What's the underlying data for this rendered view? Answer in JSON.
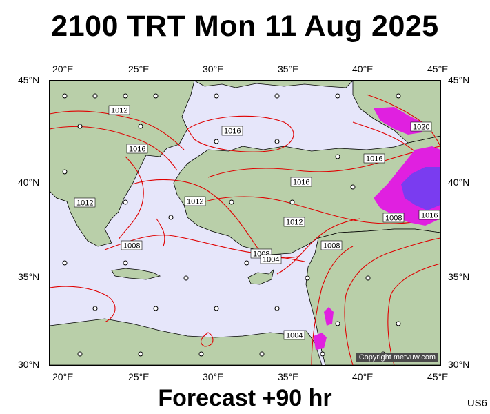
{
  "title": "2100 TRT Mon 11 Aug 2025",
  "footer": "Forecast +90 hr",
  "model_code": "US6",
  "copyright": "Copyright metvuw.com",
  "axes": {
    "lon_labels": [
      "20°E",
      "25°E",
      "30°E",
      "35°E",
      "40°E",
      "45°E"
    ],
    "lat_labels": [
      "45°N",
      "40°N",
      "35°N",
      "30°N"
    ]
  },
  "isobar_labels": [
    "1012",
    "1016",
    "1016",
    "1012",
    "1016",
    "1008",
    "1012",
    "1008",
    "1004",
    "1008",
    "1016",
    "1016",
    "1012",
    "1008",
    "1004",
    "1020"
  ],
  "colors": {
    "sea": "#e6e6fa",
    "land": "#b9cfa9",
    "isobar": "#e00000",
    "rain_heavy": "#7a3cf0",
    "rain_light": "#e020e0"
  }
}
